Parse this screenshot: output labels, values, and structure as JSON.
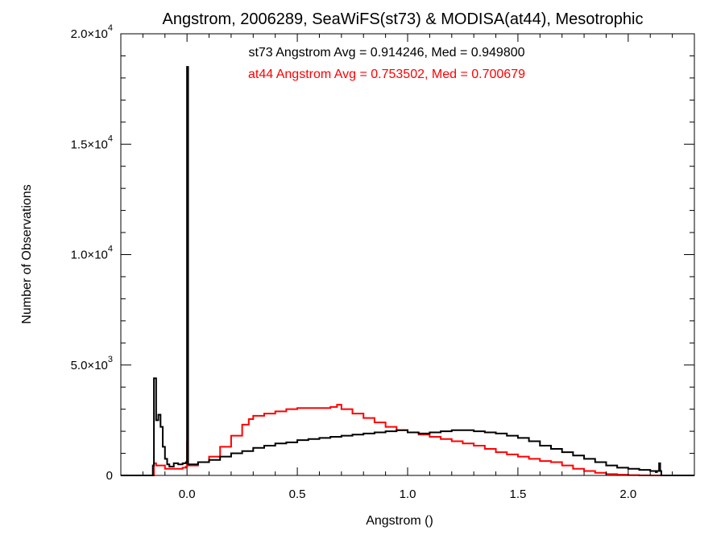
{
  "chart_data": {
    "type": "line",
    "title": "Angstrom, 2006289, SeaWiFS(st73) & MODISA(at44), Mesotrophic",
    "xlabel": "Angstrom ()",
    "ylabel": "Number of Observations",
    "xlim": [
      -0.3,
      2.3
    ],
    "ylim": [
      0,
      20000
    ],
    "x_ticks": [
      0.0,
      0.5,
      1.0,
      1.5,
      2.0
    ],
    "x_tick_labels": [
      "0.0",
      "0.5",
      "1.0",
      "1.5",
      "2.0"
    ],
    "y_ticks": [
      0,
      5000,
      10000,
      15000,
      20000
    ],
    "y_tick_labels": [
      {
        "mant": "0",
        "exp": ""
      },
      {
        "mant": "5.0×10",
        "exp": "3"
      },
      {
        "mant": "1.0×10",
        "exp": "4"
      },
      {
        "mant": "1.5×10",
        "exp": "4"
      },
      {
        "mant": "2.0×10",
        "exp": "4"
      }
    ],
    "grid": false,
    "step": "histogram",
    "annotations": [
      {
        "text": "st73 Angstrom Avg = 0.914246, Med = 0.949800",
        "color": "#000000"
      },
      {
        "text": "at44 Angstrom Avg = 0.753502, Med = 0.700679",
        "color": "#ff0000"
      }
    ],
    "series": [
      {
        "name": "st73",
        "color": "#000000",
        "x": [
          -0.3,
          -0.155,
          -0.15,
          -0.14,
          -0.13,
          -0.12,
          -0.11,
          -0.1,
          -0.09,
          -0.08,
          -0.06,
          -0.04,
          -0.02,
          -0.005,
          0.0,
          0.005,
          0.02,
          0.05,
          0.1,
          0.15,
          0.2,
          0.25,
          0.3,
          0.35,
          0.4,
          0.45,
          0.5,
          0.55,
          0.6,
          0.65,
          0.7,
          0.75,
          0.8,
          0.85,
          0.9,
          0.95,
          1.0,
          1.05,
          1.1,
          1.15,
          1.2,
          1.25,
          1.3,
          1.35,
          1.4,
          1.45,
          1.5,
          1.55,
          1.6,
          1.65,
          1.7,
          1.75,
          1.8,
          1.85,
          1.9,
          1.95,
          2.0,
          2.05,
          2.1,
          2.125,
          2.13,
          2.14,
          2.145,
          2.15,
          2.3
        ],
        "y": [
          0,
          450,
          4400,
          2500,
          2750,
          2200,
          1300,
          750,
          500,
          400,
          550,
          500,
          550,
          600,
          18500,
          500,
          500,
          600,
          700,
          850,
          1000,
          1100,
          1250,
          1350,
          1450,
          1500,
          1600,
          1650,
          1700,
          1750,
          1800,
          1850,
          1900,
          1950,
          2000,
          2050,
          1950,
          1900,
          1950,
          2000,
          2050,
          2050,
          2000,
          1950,
          1900,
          1800,
          1700,
          1550,
          1350,
          1200,
          1050,
          900,
          750,
          600,
          450,
          350,
          300,
          250,
          200,
          150,
          200,
          550,
          200,
          0,
          0
        ]
      },
      {
        "name": "at44",
        "color": "#ff0000",
        "x": [
          -0.3,
          -0.15,
          -0.14,
          -0.1,
          -0.05,
          -0.02,
          -0.005,
          0.0,
          0.005,
          0.05,
          0.1,
          0.15,
          0.2,
          0.25,
          0.28,
          0.3,
          0.35,
          0.4,
          0.45,
          0.5,
          0.55,
          0.6,
          0.65,
          0.68,
          0.7,
          0.75,
          0.8,
          0.85,
          0.9,
          0.95,
          1.0,
          1.05,
          1.1,
          1.15,
          1.2,
          1.25,
          1.3,
          1.35,
          1.4,
          1.45,
          1.5,
          1.55,
          1.6,
          1.65,
          1.7,
          1.75,
          1.8,
          1.85,
          1.9,
          1.95,
          2.0,
          2.05,
          2.1,
          2.15,
          2.3
        ],
        "y": [
          0,
          550,
          450,
          300,
          300,
          350,
          400,
          1500,
          450,
          600,
          850,
          1300,
          1800,
          2300,
          2550,
          2700,
          2800,
          2900,
          3000,
          3050,
          3050,
          3050,
          3100,
          3200,
          3000,
          2800,
          2600,
          2400,
          2200,
          2050,
          1950,
          1850,
          1750,
          1650,
          1550,
          1450,
          1350,
          1200,
          1050,
          950,
          850,
          750,
          650,
          600,
          450,
          300,
          200,
          120,
          60,
          30,
          15,
          5,
          0,
          0,
          0
        ]
      }
    ]
  }
}
